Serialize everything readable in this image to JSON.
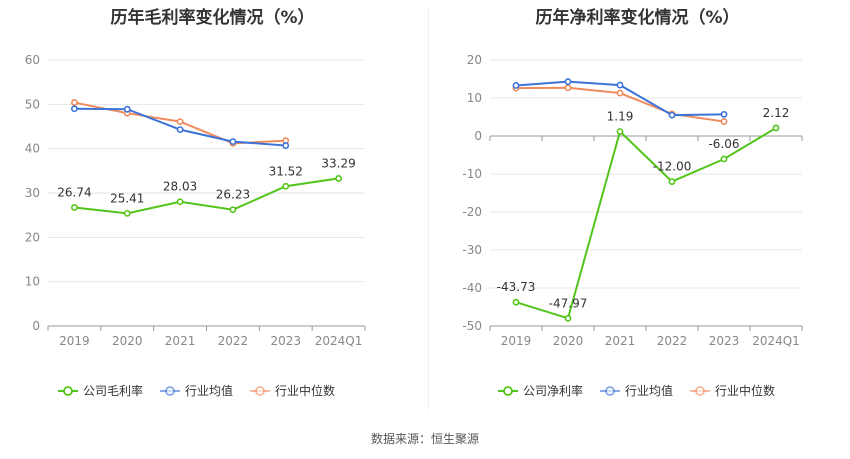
{
  "source_label": "数据来源：恒生聚源",
  "chart_data": [
    {
      "type": "line",
      "title": "历年毛利率变化情况（%）",
      "categories": [
        "2019",
        "2020",
        "2021",
        "2022",
        "2023",
        "2024Q1"
      ],
      "ylim": [
        0,
        60
      ],
      "yticks": [
        "60",
        "50",
        "40",
        "30",
        "20",
        "10",
        "0"
      ],
      "grid": true,
      "legend_position": "bottom",
      "series": [
        {
          "name": "公司毛利率",
          "color": "#52c41a",
          "values": [
            26.74,
            25.41,
            28.03,
            26.23,
            31.52,
            33.29
          ],
          "labels": [
            "26.74",
            "25.41",
            "28.03",
            "26.23",
            "31.52",
            "33.29"
          ]
        },
        {
          "name": "行业均值",
          "color": "#3b73d9",
          "values": [
            49.0,
            48.9,
            44.3,
            41.6,
            40.7,
            null
          ]
        },
        {
          "name": "行业中位数",
          "color": "#f08a5d",
          "values": [
            50.4,
            48.0,
            46.1,
            41.2,
            41.8,
            null
          ]
        }
      ]
    },
    {
      "type": "line",
      "title": "历年净利率变化情况（%）",
      "categories": [
        "2019",
        "2020",
        "2021",
        "2022",
        "2023",
        "2024Q1"
      ],
      "ylim": [
        -50,
        20
      ],
      "yticks": [
        "20",
        "10",
        "0",
        "-10",
        "-20",
        "-30",
        "-40",
        "-50"
      ],
      "grid": true,
      "legend_position": "bottom",
      "series": [
        {
          "name": "公司净利率",
          "color": "#52c41a",
          "values": [
            -43.73,
            -47.97,
            1.19,
            -12.0,
            -6.06,
            2.12
          ],
          "labels": [
            "-43.73",
            "-47.97",
            "1.19",
            "-12.00",
            "-6.06",
            "2.12"
          ]
        },
        {
          "name": "行业均值",
          "color": "#3b73d9",
          "values": [
            13.3,
            14.3,
            13.4,
            5.5,
            5.7,
            null
          ]
        },
        {
          "name": "行业中位数",
          "color": "#f08a5d",
          "values": [
            12.6,
            12.7,
            11.3,
            5.8,
            3.8,
            null
          ]
        }
      ]
    }
  ]
}
